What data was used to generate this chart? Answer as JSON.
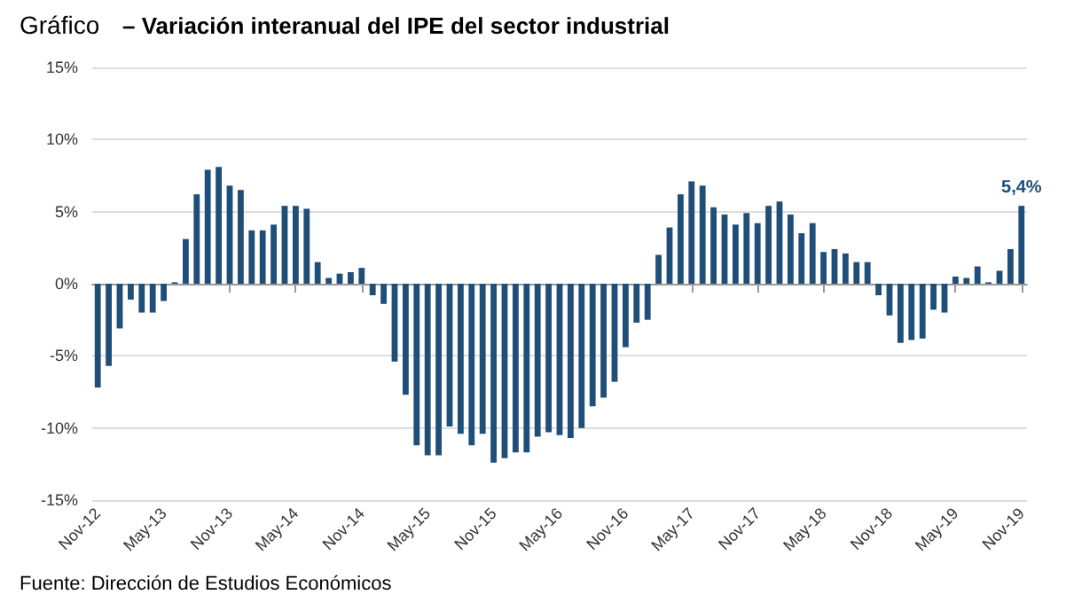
{
  "chart_data": {
    "type": "bar",
    "title": "Gráfico",
    "subtitle": "– Variación interanual del IPE del sector industrial",
    "categories": [
      "Nov-12",
      null,
      null,
      null,
      null,
      null,
      "May-13",
      null,
      null,
      null,
      null,
      null,
      "Nov-13",
      null,
      null,
      null,
      null,
      null,
      "May-14",
      null,
      null,
      null,
      null,
      null,
      "Nov-14",
      null,
      null,
      null,
      null,
      null,
      "May-15",
      null,
      null,
      null,
      null,
      null,
      "Nov-15",
      null,
      null,
      null,
      null,
      null,
      "May-16",
      null,
      null,
      null,
      null,
      null,
      "Nov-16",
      null,
      null,
      null,
      null,
      null,
      "May-17",
      null,
      null,
      null,
      null,
      null,
      "Nov-17",
      null,
      null,
      null,
      null,
      null,
      "May-18",
      null,
      null,
      null,
      null,
      null,
      "Nov-18",
      null,
      null,
      null,
      null,
      null,
      "May-19",
      null,
      null,
      null,
      null,
      null,
      "Nov-19"
    ],
    "values": [
      -7.2,
      -5.7,
      -3.1,
      -1.1,
      -2.0,
      -2.0,
      -1.2,
      0.1,
      3.1,
      6.2,
      7.9,
      8.1,
      6.8,
      6.5,
      3.7,
      3.7,
      4.1,
      5.4,
      5.4,
      5.2,
      1.5,
      0.4,
      0.7,
      0.8,
      1.1,
      -0.8,
      -1.4,
      -5.4,
      -7.7,
      -11.2,
      -11.9,
      -11.9,
      -9.9,
      -10.4,
      -11.2,
      -10.4,
      -12.4,
      -12.1,
      -11.7,
      -11.7,
      -10.6,
      -10.3,
      -10.5,
      -10.7,
      -10.0,
      -8.5,
      -7.9,
      -6.8,
      -4.4,
      -2.7,
      -2.5,
      2.0,
      3.9,
      6.2,
      7.1,
      6.8,
      5.3,
      4.8,
      4.1,
      4.9,
      4.2,
      5.4,
      5.7,
      4.8,
      3.5,
      4.2,
      2.2,
      2.4,
      2.1,
      1.5,
      1.5,
      -0.8,
      -2.2,
      -4.1,
      -3.9,
      -3.8,
      -1.8,
      -2.0,
      0.5,
      0.4,
      1.2,
      0.1,
      0.9,
      2.4,
      5.4
    ],
    "value_labels": [
      null,
      null,
      null,
      null,
      null,
      null,
      null,
      null,
      null,
      null,
      null,
      null,
      null,
      null,
      null,
      null,
      null,
      null,
      null,
      null,
      null,
      null,
      null,
      null,
      null,
      null,
      null,
      null,
      null,
      null,
      null,
      null,
      null,
      null,
      null,
      null,
      null,
      null,
      null,
      null,
      null,
      null,
      null,
      null,
      null,
      null,
      null,
      null,
      null,
      null,
      null,
      null,
      null,
      null,
      null,
      null,
      null,
      null,
      null,
      null,
      null,
      null,
      null,
      null,
      null,
      null,
      null,
      null,
      null,
      null,
      null,
      null,
      null,
      null,
      null,
      null,
      null,
      null,
      null,
      null,
      null,
      null,
      null,
      null,
      "5,4%"
    ],
    "color": "#1f4e79",
    "ylim": [
      -15,
      15
    ],
    "yticks": [
      {
        "value": -15,
        "label": "-15%"
      },
      {
        "value": -10,
        "label": "-10%"
      },
      {
        "value": -5,
        "label": "-5%"
      },
      {
        "value": 0,
        "label": "0%"
      },
      {
        "value": 5,
        "label": "5%"
      },
      {
        "value": 10,
        "label": "10%"
      },
      {
        "value": 15,
        "label": "15%"
      }
    ],
    "grid": "y",
    "annotations": [
      "Fuente: Dirección de Estudios Económicos"
    ]
  }
}
